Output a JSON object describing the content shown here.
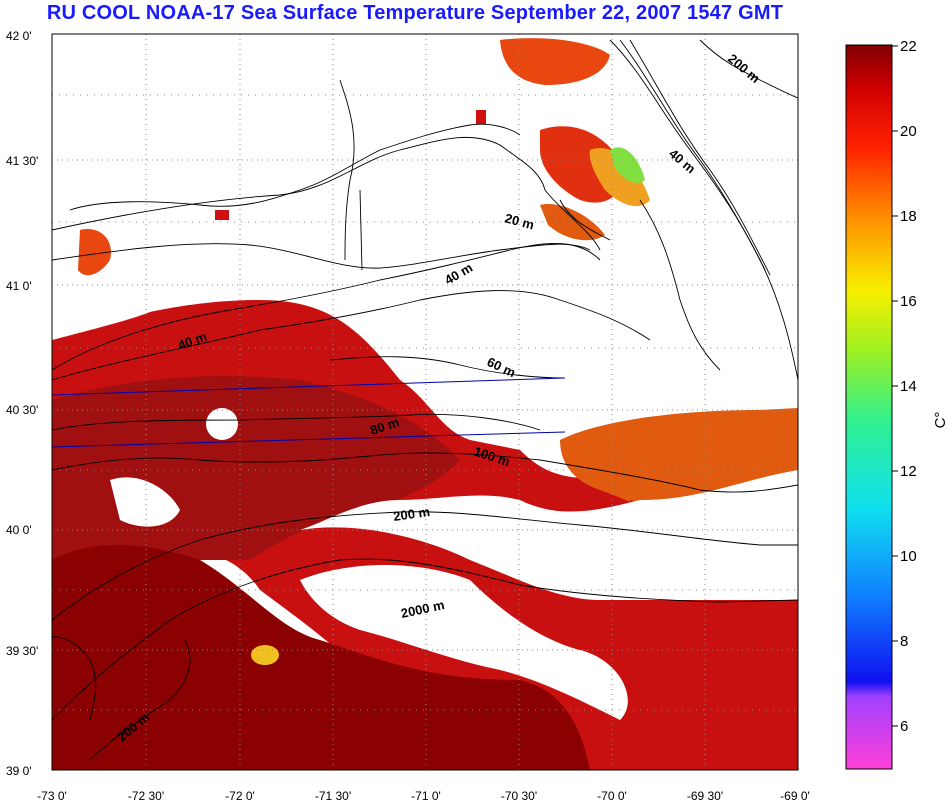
{
  "title": "RU COOL  NOAA-17 Sea Surface Temperature September 22, 2007 1547 GMT",
  "lat_labels": [
    "42 0'",
    "41 30'",
    "41 0'",
    "40 30'",
    "40 0'",
    "39 30'",
    "39 0'"
  ],
  "lon_labels": [
    "-73 0'",
    "-72 30'",
    "-72 0'",
    "-71 30'",
    "-71 0'",
    "-70 30'",
    "-70 0'",
    "-69 30'",
    "-69 0'"
  ],
  "contour_labels": [
    "200 m",
    "40 m",
    "20 m",
    "40 m",
    "40 m",
    "60 m",
    "80 m",
    "100 m",
    "200 m",
    "2000 m",
    "200 m"
  ],
  "colorbar": {
    "ticks": [
      "22",
      "20",
      "18",
      "16",
      "14",
      "12",
      "10",
      "8",
      "6"
    ],
    "unit": "C°",
    "min": 5,
    "max": 22
  },
  "colors": {
    "title": "#1a1aff",
    "warm_dark": "#8b0000",
    "warm": "#d41010",
    "mid": "#e05a10",
    "accent": "#f08020",
    "cool": "#40d040"
  }
}
